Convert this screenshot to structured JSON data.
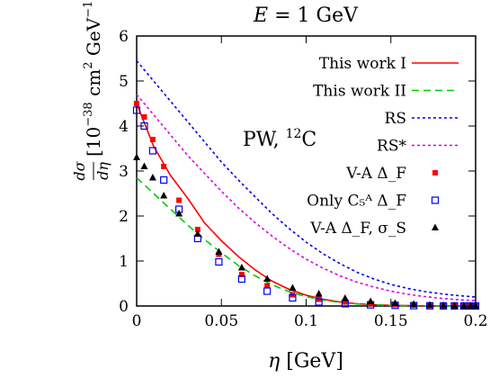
{
  "chart_data": {
    "type": "line",
    "title": "E = 1 GeV",
    "xlabel": "η [GeV]",
    "ylabel": "dσ/dη [10⁻³⁸ cm² GeV⁻¹]",
    "annotation": "PW, ¹²C",
    "xlim": [
      0,
      0.2
    ],
    "ylim": [
      0,
      6
    ],
    "xticks": [
      "0",
      "0.05",
      "0.1",
      "0.15",
      "0.2"
    ],
    "yticks": [
      "0",
      "1",
      "2",
      "3",
      "4",
      "5",
      "6"
    ],
    "grid": false,
    "legend_position": "top-right",
    "series": [
      {
        "name": "This work I",
        "kind": "line",
        "color": "#ff0000",
        "dash": "solid",
        "x": [
          0,
          0.01,
          0.02,
          0.03,
          0.04,
          0.05,
          0.06,
          0.07,
          0.08,
          0.09,
          0.1,
          0.11,
          0.12,
          0.13,
          0.14,
          0.15,
          0.16,
          0.17,
          0.18,
          0.19,
          0.2
        ],
        "y": [
          4.5,
          3.55,
          2.9,
          2.4,
          1.85,
          1.45,
          1.1,
          0.8,
          0.55,
          0.37,
          0.24,
          0.15,
          0.09,
          0.05,
          0.03,
          0.015,
          0.008,
          0.004,
          0.002,
          0.001,
          0.0
        ]
      },
      {
        "name": "This work II",
        "kind": "line",
        "color": "#00cc00",
        "dash": "dashed",
        "x": [
          0,
          0.01,
          0.02,
          0.03,
          0.04,
          0.05,
          0.06,
          0.07,
          0.08,
          0.09,
          0.1,
          0.11,
          0.12,
          0.13,
          0.14,
          0.15,
          0.16,
          0.17,
          0.18,
          0.19,
          0.2
        ],
        "y": [
          2.85,
          2.5,
          2.15,
          1.8,
          1.48,
          1.18,
          0.9,
          0.67,
          0.47,
          0.32,
          0.21,
          0.13,
          0.08,
          0.045,
          0.025,
          0.013,
          0.007,
          0.003,
          0.001,
          0.0005,
          0.0
        ]
      },
      {
        "name": "RS",
        "kind": "line",
        "color": "#0000ee",
        "dash": "dotted",
        "x": [
          0,
          0.01,
          0.02,
          0.03,
          0.04,
          0.05,
          0.06,
          0.07,
          0.08,
          0.09,
          0.1,
          0.11,
          0.12,
          0.13,
          0.14,
          0.15,
          0.16,
          0.17,
          0.18,
          0.19,
          0.2
        ],
        "y": [
          5.45,
          5.0,
          4.55,
          4.1,
          3.65,
          3.2,
          2.8,
          2.42,
          2.05,
          1.72,
          1.42,
          1.16,
          0.94,
          0.75,
          0.6,
          0.48,
          0.39,
          0.32,
          0.27,
          0.23,
          0.2
        ]
      },
      {
        "name": "RS*",
        "kind": "line",
        "color": "#dd00dd",
        "dash": "dotted",
        "x": [
          0,
          0.01,
          0.02,
          0.03,
          0.04,
          0.05,
          0.06,
          0.07,
          0.08,
          0.09,
          0.1,
          0.11,
          0.12,
          0.13,
          0.14,
          0.15,
          0.16,
          0.17,
          0.18,
          0.19,
          0.2
        ],
        "y": [
          4.7,
          4.25,
          3.8,
          3.35,
          2.95,
          2.55,
          2.18,
          1.85,
          1.55,
          1.28,
          1.04,
          0.84,
          0.67,
          0.53,
          0.42,
          0.33,
          0.26,
          0.21,
          0.17,
          0.14,
          0.12
        ]
      },
      {
        "name": "V-A Δ_F",
        "kind": "scatter",
        "marker": "filled-square",
        "color": "#ff0000",
        "x": [
          0.0,
          0.0045,
          0.0095,
          0.016,
          0.025,
          0.036,
          0.0485,
          0.062,
          0.077,
          0.092,
          0.1075,
          0.123,
          0.138,
          0.1525,
          0.1635,
          0.173,
          0.181,
          0.1875,
          0.193,
          0.197,
          0.2
        ],
        "y": [
          4.5,
          4.2,
          3.7,
          3.1,
          2.35,
          1.7,
          1.15,
          0.7,
          0.45,
          0.25,
          0.15,
          0.09,
          0.05,
          0.03,
          0.02,
          0.01,
          0.005,
          0.003,
          0.002,
          0.001,
          0.0
        ]
      },
      {
        "name": "Only C₅ᴬ Δ_F",
        "kind": "scatter",
        "marker": "open-square",
        "color": "#0000ee",
        "x": [
          0.0,
          0.0045,
          0.0095,
          0.016,
          0.025,
          0.036,
          0.0485,
          0.062,
          0.077,
          0.092,
          0.1075,
          0.123,
          0.138,
          0.1525,
          0.1635,
          0.173,
          0.181,
          0.1875,
          0.193,
          0.197,
          0.2
        ],
        "y": [
          4.35,
          4.0,
          3.45,
          2.8,
          2.15,
          1.5,
          0.98,
          0.6,
          0.33,
          0.18,
          0.09,
          0.05,
          0.025,
          0.015,
          0.008,
          0.004,
          0.002,
          0.001,
          0.0,
          0.0,
          0.0
        ]
      },
      {
        "name": "V-A Δ_F, σ_S",
        "kind": "scatter",
        "marker": "filled-triangle",
        "color": "#000000",
        "x": [
          0.0,
          0.0045,
          0.0095,
          0.016,
          0.025,
          0.036,
          0.0485,
          0.062,
          0.077,
          0.092,
          0.1075,
          0.123,
          0.138,
          0.1525,
          0.1635,
          0.173,
          0.181,
          0.1875,
          0.193,
          0.197,
          0.2
        ],
        "y": [
          3.3,
          3.1,
          2.85,
          2.45,
          2.05,
          1.6,
          1.2,
          0.85,
          0.6,
          0.4,
          0.27,
          0.17,
          0.1,
          0.06,
          0.04,
          0.02,
          0.01,
          0.006,
          0.003,
          0.002,
          0.001
        ]
      }
    ]
  }
}
